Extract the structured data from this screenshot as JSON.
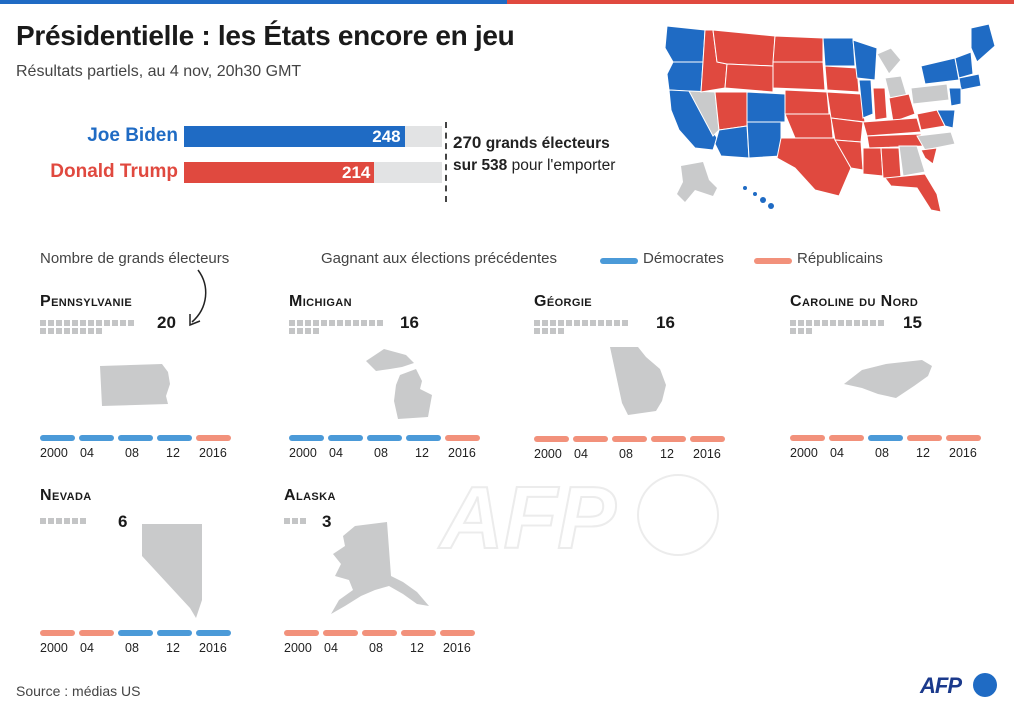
{
  "title": "Présidentielle : les États encore en jeu",
  "subtitle": "Résultats partiels, au 4 nov, 20h30 GMT",
  "colors": {
    "democrat": "#1f6bc4",
    "republican": "#e0493f",
    "democrat_history": "#4b9ad8",
    "republican_history": "#f2917b",
    "undecided": "#c9cacb",
    "track": "#e2e3e4"
  },
  "threshold": {
    "value": "270",
    "value_label": "grands électeurs",
    "total": "538",
    "prefix": "sur",
    "suffix": "pour l'emporter"
  },
  "chart_data": {
    "type": "bar",
    "orientation": "horizontal",
    "categories": [
      "Joe Biden",
      "Donald Trump"
    ],
    "values": [
      248,
      214
    ],
    "xlim": [
      0,
      290
    ],
    "threshold": 270
  },
  "legend": {
    "ev_label": "Nombre de grands électeurs",
    "history_label": "Gagnant aux élections précédentes",
    "dem_label": "Démocrates",
    "rep_label": "Républicains"
  },
  "years": [
    "2000",
    "04",
    "08",
    "12",
    "2016"
  ],
  "states": [
    {
      "name": "Pennsylvanie",
      "ev": 20,
      "history": [
        "D",
        "D",
        "D",
        "D",
        "R"
      ]
    },
    {
      "name": "Michigan",
      "ev": 16,
      "history": [
        "D",
        "D",
        "D",
        "D",
        "R"
      ]
    },
    {
      "name": "Géorgie",
      "ev": 16,
      "history": [
        "R",
        "R",
        "R",
        "R",
        "R"
      ]
    },
    {
      "name": "Caroline du Nord",
      "ev": 15,
      "history": [
        "R",
        "R",
        "D",
        "R",
        "R"
      ]
    },
    {
      "name": "Nevada",
      "ev": 6,
      "history": [
        "R",
        "R",
        "D",
        "D",
        "D"
      ]
    },
    {
      "name": "Alaska",
      "ev": 3,
      "history": [
        "R",
        "R",
        "R",
        "R",
        "R"
      ]
    }
  ],
  "source": "Source : médias US",
  "logo": "AFP",
  "watermark": "AFP"
}
